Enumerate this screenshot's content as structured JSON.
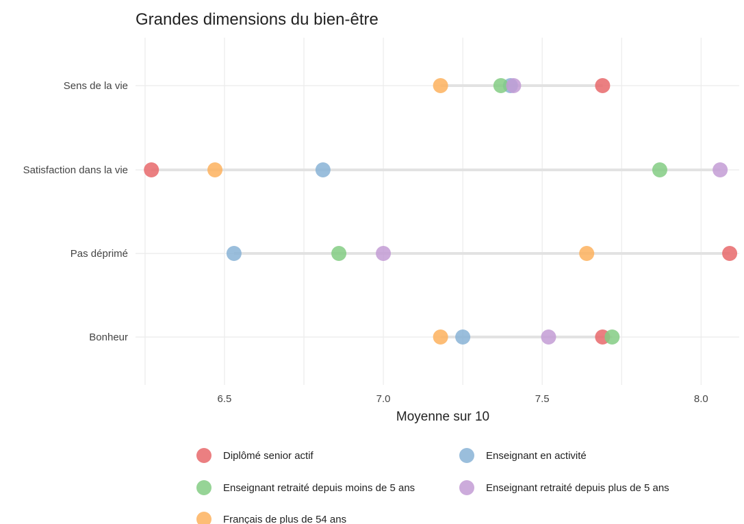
{
  "chart_data": {
    "type": "scatter",
    "title": "Grandes dimensions du bien-être",
    "xlabel": "Moyenne sur 10",
    "ylabel": "",
    "xlim": [
      6.22,
      8.12
    ],
    "x_ticks": [
      "6.5",
      "7.0",
      "7.5",
      "8.0"
    ],
    "categories": [
      "Sens de la vie",
      "Satisfaction dans la vie",
      "Pas déprimé",
      "Bonheur"
    ],
    "series": [
      {
        "name": "Diplômé senior actif",
        "color": "#e8686b",
        "values": [
          7.69,
          6.27,
          8.09,
          7.69
        ]
      },
      {
        "name": "Enseignant en activité",
        "color": "#88b3d6",
        "values": [
          7.4,
          6.81,
          6.53,
          7.25
        ]
      },
      {
        "name": "Enseignant retraité depuis moins de 5 ans",
        "color": "#84cc84",
        "values": [
          7.37,
          7.87,
          6.86,
          7.72
        ]
      },
      {
        "name": "Enseignant retraité depuis plus de 5 ans",
        "color": "#c39cd5",
        "values": [
          7.41,
          8.06,
          7.0,
          7.52
        ]
      },
      {
        "name": "Français de plus de 54 ans",
        "color": "#fdb25e",
        "values": [
          7.18,
          6.47,
          7.64,
          7.18
        ]
      }
    ],
    "grid": true,
    "legend_position": "bottom"
  }
}
